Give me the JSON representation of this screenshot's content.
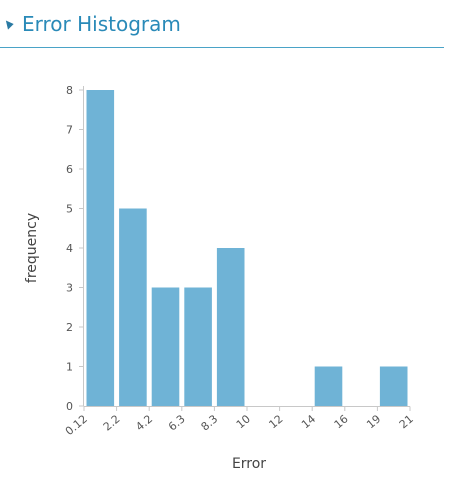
{
  "section": {
    "title": "Error Histogram"
  },
  "chart_data": {
    "type": "bar",
    "categories": [
      "0.12",
      "2.2",
      "4.2",
      "6.3",
      "8.3",
      "10",
      "12",
      "14",
      "16",
      "19"
    ],
    "values": [
      8,
      5,
      3,
      3,
      4,
      0,
      0,
      1,
      0,
      1
    ],
    "bin_edges": [
      "0.12",
      "2.2",
      "4.2",
      "6.3",
      "8.3",
      "10",
      "12",
      "14",
      "16",
      "19",
      "21"
    ],
    "xlabel": "Error",
    "ylabel": "frequency",
    "ylim": [
      0,
      8
    ],
    "yticks": [
      0,
      1,
      2,
      3,
      4,
      5,
      6,
      7,
      8
    ],
    "bar_color": "#6fb3d6",
    "grid": false
  }
}
